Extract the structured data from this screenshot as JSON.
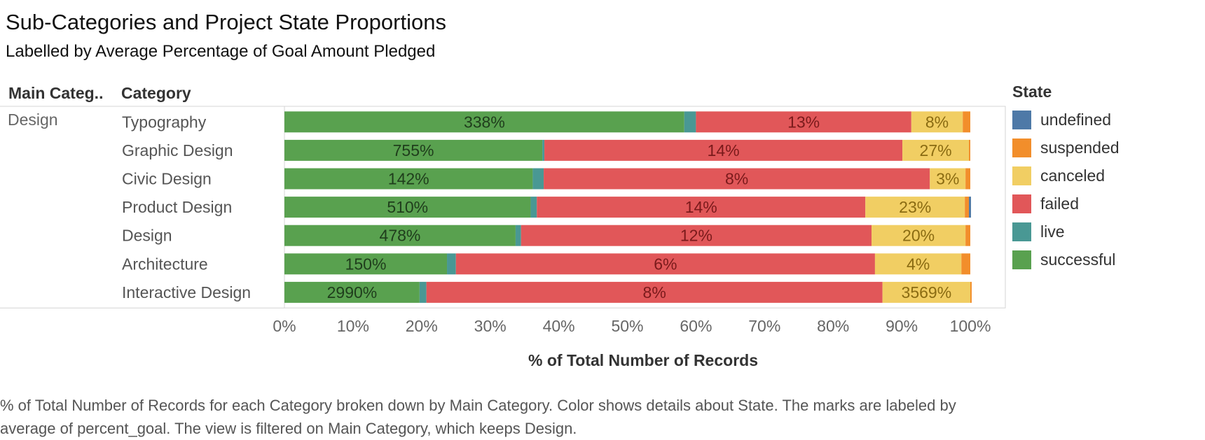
{
  "title": "Sub-Categories and Project State Proportions",
  "subtitle": "Labelled by Average Percentage of Goal Amount Pledged",
  "headers": {
    "main_category": "Main Categ..",
    "category": "Category"
  },
  "main_category_value": "Design",
  "legend": {
    "title": "State",
    "items": [
      {
        "label": "undefined",
        "color": "#4e79a7"
      },
      {
        "label": "suspended",
        "color": "#f28e2b"
      },
      {
        "label": "canceled",
        "color": "#f1ce63"
      },
      {
        "label": "failed",
        "color": "#e15759"
      },
      {
        "label": "live",
        "color": "#499894"
      },
      {
        "label": "successful",
        "color": "#59a14f"
      }
    ]
  },
  "caption": "% of Total Number of Records for each Category broken down by Main Category.  Color shows details about State.  The marks are labeled by average of percent_goal. The view is filtered on Main Category, which keeps Design.",
  "chart_data": {
    "type": "bar",
    "orientation": "horizontal",
    "stacked": true,
    "normalized": true,
    "xlabel": "% of Total Number of Records",
    "xlim": [
      0,
      100
    ],
    "xticks": [
      "0%",
      "10%",
      "20%",
      "30%",
      "40%",
      "50%",
      "60%",
      "70%",
      "80%",
      "90%",
      "100%"
    ],
    "categories": [
      "Typography",
      "Graphic Design",
      "Civic Design",
      "Product Design",
      "Design",
      "Architecture",
      "Interactive Design"
    ],
    "series": [
      {
        "name": "successful",
        "color": "#59a14f",
        "values": [
          58.3,
          37.6,
          36.2,
          35.9,
          33.7,
          23.7,
          19.7
        ],
        "labels": [
          "338%",
          "755%",
          "142%",
          "510%",
          "478%",
          "150%",
          "2990%"
        ]
      },
      {
        "name": "live",
        "color": "#499894",
        "values": [
          1.7,
          0.3,
          1.6,
          0.9,
          0.8,
          1.3,
          1.0
        ],
        "labels": [
          "",
          "",
          "",
          "",
          "",
          "",
          ""
        ]
      },
      {
        "name": "failed",
        "color": "#e15759",
        "values": [
          31.4,
          52.2,
          56.3,
          47.9,
          51.1,
          61.1,
          66.5
        ],
        "labels": [
          "13%",
          "14%",
          "8%",
          "14%",
          "12%",
          "6%",
          "8%"
        ]
      },
      {
        "name": "canceled",
        "color": "#f1ce63",
        "values": [
          7.5,
          9.7,
          5.2,
          14.5,
          13.7,
          12.6,
          12.8
        ],
        "labels": [
          "8%",
          "27%",
          "3%",
          "23%",
          "20%",
          "4%",
          "3569%"
        ]
      },
      {
        "name": "suspended",
        "color": "#f28e2b",
        "values": [
          1.1,
          0.2,
          0.7,
          0.6,
          0.7,
          1.3,
          0.2
        ],
        "labels": [
          "",
          "",
          "",
          "",
          "",
          "",
          ""
        ]
      },
      {
        "name": "undefined",
        "color": "#4e79a7",
        "values": [
          0,
          0,
          0,
          0.3,
          0,
          0,
          0
        ],
        "labels": [
          "",
          "",
          "",
          "",
          "",
          "",
          ""
        ]
      }
    ]
  }
}
